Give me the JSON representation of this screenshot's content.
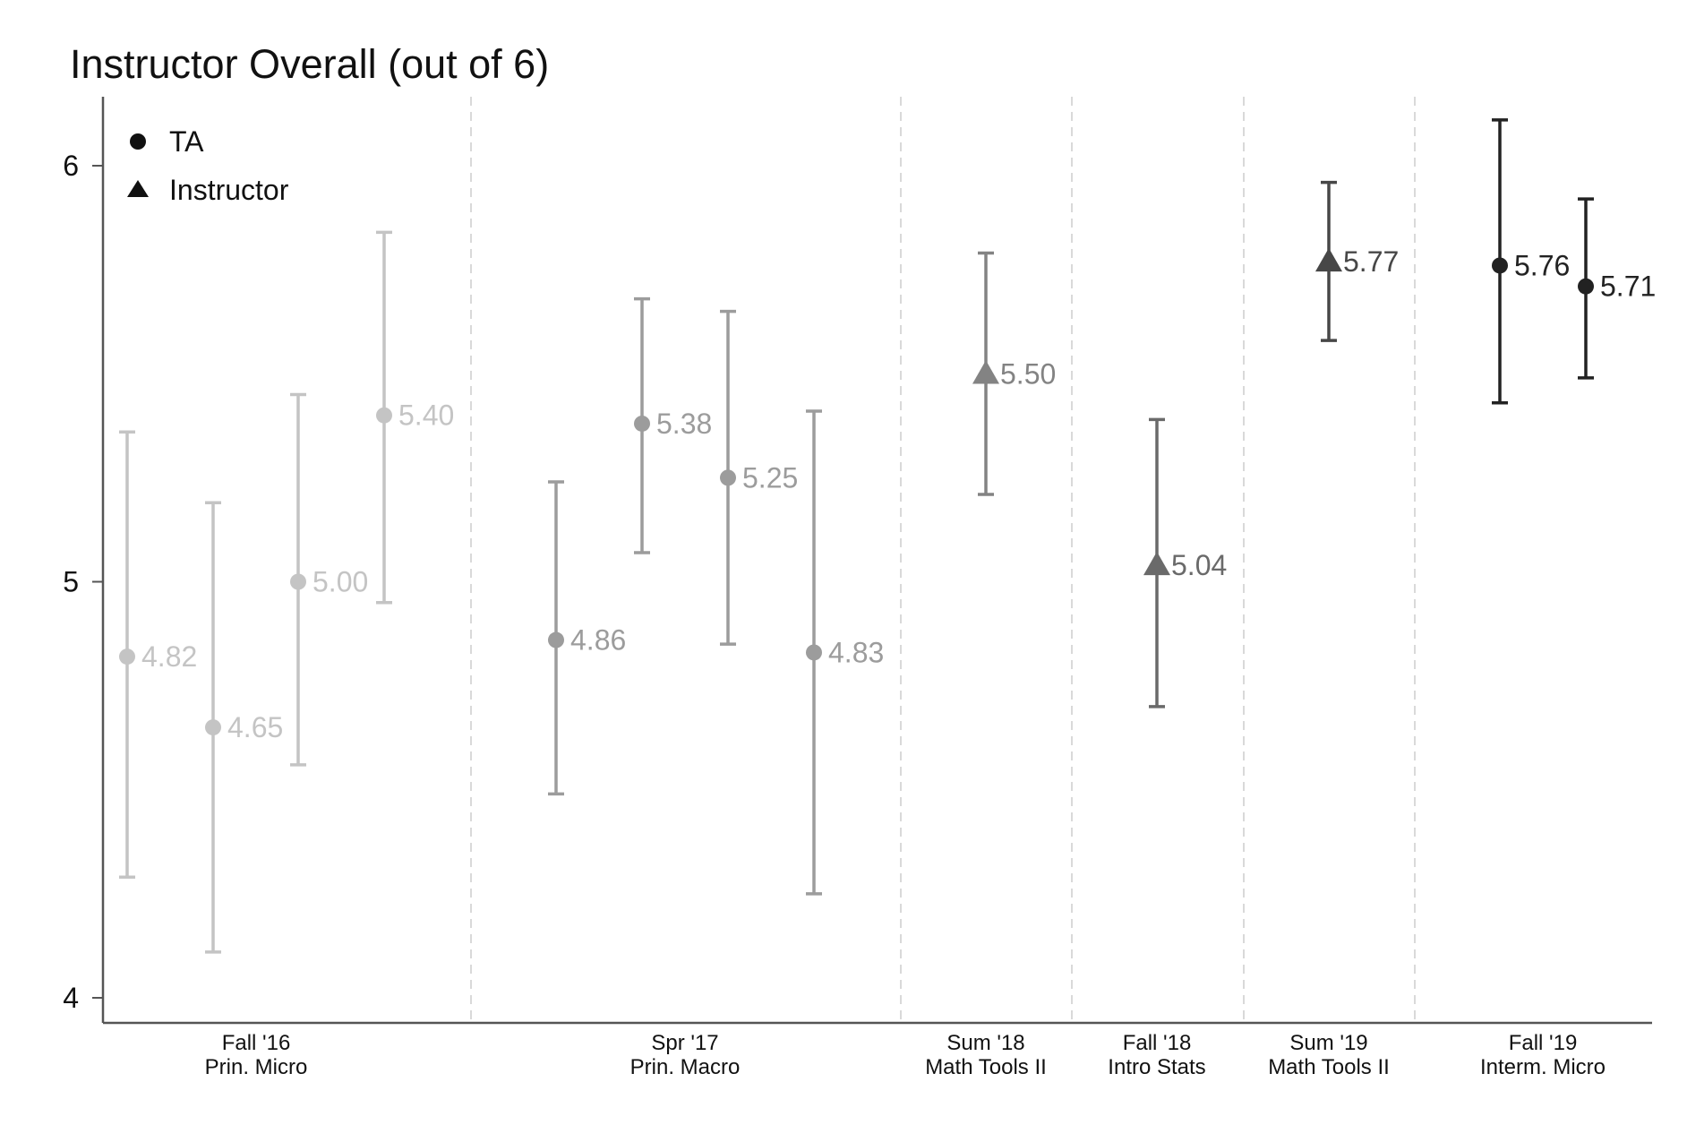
{
  "chart_data": {
    "type": "scatter",
    "title": "Instructor Overall (out of 6)",
    "xlabel": "",
    "ylabel": "",
    "ylim": [
      3.94,
      6.17
    ],
    "yticks": [
      4,
      5,
      6
    ],
    "legend": {
      "placement": "top-left",
      "entries": [
        {
          "label": "TA",
          "marker": "circle"
        },
        {
          "label": "Instructor",
          "marker": "triangle"
        }
      ]
    },
    "groups": [
      {
        "label_line1": "Fall '16",
        "label_line2": "Prin. Micro",
        "color": "#c4c4c4",
        "points": [
          {
            "value": 4.82,
            "label": "4.82",
            "ci": [
              4.29,
              5.36
            ],
            "marker": "circle"
          },
          {
            "value": 4.65,
            "label": "4.65",
            "ci": [
              4.11,
              5.19
            ],
            "marker": "circle"
          },
          {
            "value": 5.0,
            "label": "5.00",
            "ci": [
              4.56,
              5.45
            ],
            "marker": "circle"
          },
          {
            "value": 5.4,
            "label": "5.40",
            "ci": [
              4.95,
              5.84
            ],
            "marker": "circle"
          }
        ]
      },
      {
        "label_line1": "Spr '17",
        "label_line2": "Prin. Macro",
        "color": "#9c9c9c",
        "points": [
          {
            "value": 4.86,
            "label": "4.86",
            "ci": [
              4.49,
              5.24
            ],
            "marker": "circle"
          },
          {
            "value": 5.38,
            "label": "5.38",
            "ci": [
              5.07,
              5.68
            ],
            "marker": "circle"
          },
          {
            "value": 5.25,
            "label": "5.25",
            "ci": [
              4.85,
              5.65
            ],
            "marker": "circle"
          },
          {
            "value": 4.83,
            "label": "4.83",
            "ci": [
              4.25,
              5.41
            ],
            "marker": "circle"
          }
        ]
      },
      {
        "label_line1": "Sum '18",
        "label_line2": "Math Tools II",
        "color": "#838383",
        "points": [
          {
            "value": 5.5,
            "label": "5.50",
            "ci": [
              5.21,
              5.79
            ],
            "marker": "triangle"
          }
        ]
      },
      {
        "label_line1": "Fall '18",
        "label_line2": "Intro Stats",
        "color": "#6a6a6a",
        "points": [
          {
            "value": 5.04,
            "label": "5.04",
            "ci": [
              4.7,
              5.39
            ],
            "marker": "triangle"
          }
        ]
      },
      {
        "label_line1": "Sum '19",
        "label_line2": "Math Tools II",
        "color": "#474747",
        "points": [
          {
            "value": 5.77,
            "label": "5.77",
            "ci": [
              5.58,
              5.96
            ],
            "marker": "triangle"
          }
        ]
      },
      {
        "label_line1": "Fall '19",
        "label_line2": "Interm. Micro",
        "color": "#222222",
        "points": [
          {
            "value": 5.76,
            "label": "5.76",
            "ci": [
              5.43,
              6.11
            ],
            "marker": "circle"
          },
          {
            "value": 5.71,
            "label": "5.71",
            "ci": [
              5.49,
              5.92
            ],
            "marker": "circle"
          }
        ]
      }
    ]
  }
}
